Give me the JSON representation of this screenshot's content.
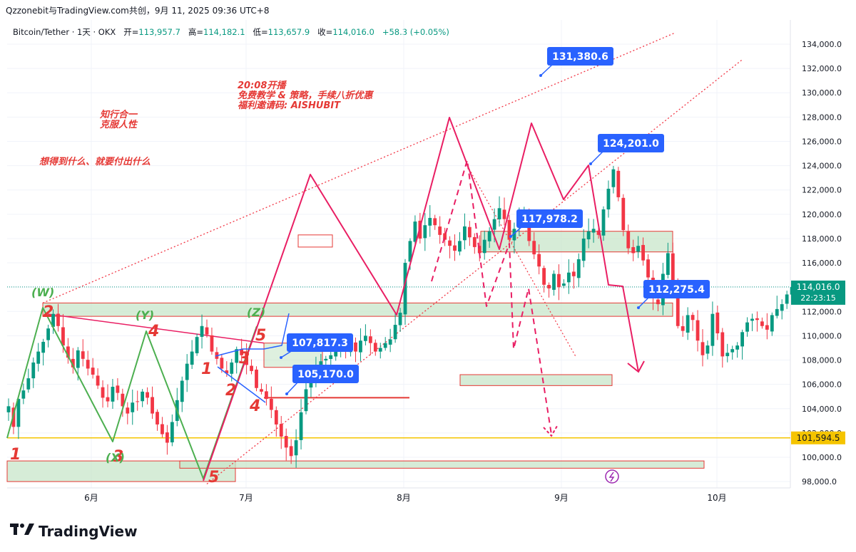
{
  "header": {
    "attribution": "Qzzonebit与TradingView.com共创，9月 11, 2025 09:36 UTC+8"
  },
  "symbol_bar": {
    "name": "Bitcoin/Tether · 1天 · OKX",
    "open_label": "开=",
    "open": "113,957.7",
    "high_label": "高=",
    "high": "114,182.1",
    "low_label": "低=",
    "low": "113,657.9",
    "close_label": "收=",
    "close": "114,016.0",
    "change": "+58.3 (+0.05%)"
  },
  "brand": {
    "logo": "TV",
    "name": "TradingView"
  },
  "colors": {
    "up": "#089981",
    "down": "#f23645",
    "wave": "#e91e63",
    "green_wave": "#4caf50",
    "callout": "#2962ff",
    "zone": "#c8e6c9",
    "yellow": "#f5c400"
  },
  "chart_data": {
    "type": "candlestick",
    "timeframe": "1天",
    "ylim": [
      97500,
      135000
    ],
    "y_ticks": [
      "98,000.0",
      "100,000.0",
      "102,000.0",
      "104,000.0",
      "106,000.0",
      "108,000.0",
      "110,000.0",
      "112,000.0",
      "114,000.0",
      "116,000.0",
      "118,000.0",
      "120,000.0",
      "122,000.0",
      "124,000.0",
      "126,000.0",
      "128,000.0",
      "130,000.0",
      "132,000.0",
      "134,000.0"
    ],
    "x_ticks": [
      "6月",
      "7月",
      "8月",
      "9月",
      "10月"
    ],
    "price_label": "114,016.0",
    "countdown": "22:23:15",
    "yellow_line_label": "101,594.5",
    "callouts": [
      "131,380.6",
      "124,201.0",
      "117,978.2",
      "112,275.4",
      "107,817.3",
      "105,170.0"
    ],
    "annotations": {
      "title_block": [
        "20:08开播",
        "免费教学 & 策略，手续八折优惠",
        "福利邀请码: AISHUBIT"
      ],
      "motto1": [
        "知行合一",
        "克服人性"
      ],
      "motto2": "想得到什么、就要付出什么"
    },
    "wave_labels_red": [
      "1",
      "2",
      "3",
      "4",
      "5",
      "1",
      "2",
      "3",
      "4",
      "5"
    ],
    "wave_labels_green": [
      "(W)",
      "(X)",
      "(Y)",
      "(Z)"
    ],
    "close_series_approx": [
      104200,
      102500,
      104800,
      105500,
      106500,
      107800,
      108700,
      109500,
      110600,
      111800,
      110800,
      109200,
      108200,
      107400,
      108800,
      108100,
      107300,
      106800,
      105900,
      104900,
      104600,
      105800,
      105300,
      104200,
      103600,
      104500,
      104600,
      105400,
      104900,
      103600,
      102700,
      101900,
      101200,
      102900,
      104700,
      106300,
      107700,
      108700,
      109900,
      110800,
      110100,
      108700,
      108100,
      107300,
      106900,
      107800,
      108900,
      108400,
      107600,
      107100,
      105700,
      105400,
      104800,
      103900,
      102700,
      101700,
      100800,
      100100,
      101400,
      103700,
      105600,
      106700,
      107400,
      107900,
      108100,
      108400,
      108800,
      109100,
      108800,
      109400,
      108700,
      109600,
      110000,
      109400,
      108700,
      109000,
      109400,
      109700,
      110900,
      111900,
      116000,
      117800,
      119400,
      118000,
      119100,
      119700,
      119100,
      118300,
      117900,
      117400,
      117000,
      117800,
      119000,
      118100,
      117300,
      116800,
      117900,
      118600,
      119600,
      120500,
      119600,
      117900,
      118800,
      119800,
      120000,
      117800,
      116700,
      115700,
      114200,
      113900,
      115100,
      114000,
      114300,
      115200,
      114900,
      116300,
      118000,
      118600,
      118800,
      118300,
      120400,
      122100,
      123700,
      121400,
      118700,
      117200,
      116800,
      117400,
      116200,
      114800,
      113100,
      112600,
      115100,
      116800,
      114300,
      110800,
      110400,
      111700,
      111300,
      109600,
      108400,
      109200,
      111800,
      110200,
      108300,
      108600,
      108900,
      109200,
      110300,
      111100,
      111400,
      111300,
      110800,
      110500,
      111700,
      112200,
      112600,
      113400,
      114016
    ]
  }
}
